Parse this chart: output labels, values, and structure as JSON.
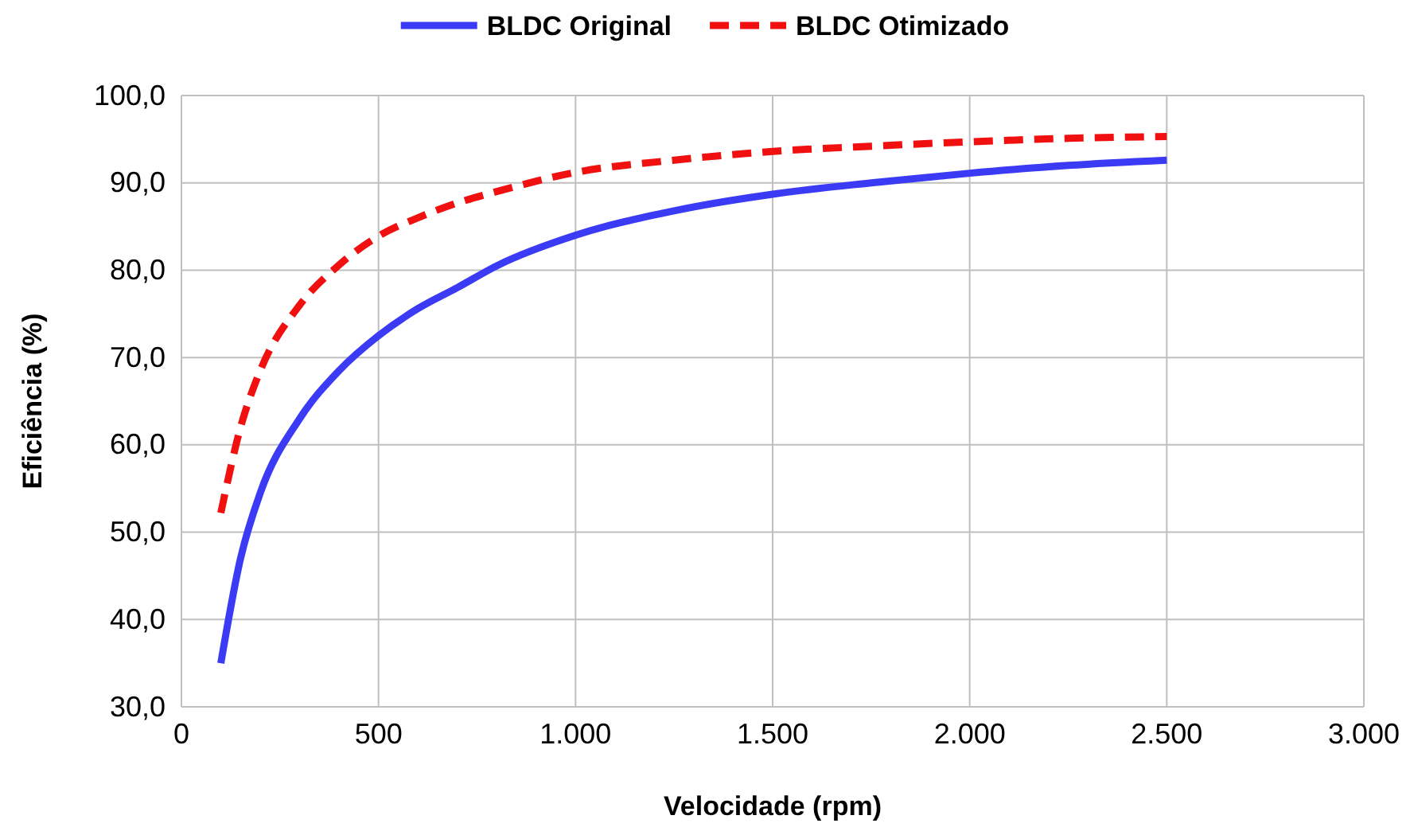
{
  "chart_data": {
    "type": "line",
    "xlabel": "Velocidade (rpm)",
    "ylabel": "Eficiência (%)",
    "xlim": [
      0,
      3000
    ],
    "ylim": [
      30,
      100
    ],
    "xticks": [
      0,
      {
        "value": 500,
        "label": "500"
      },
      {
        "value": 1000,
        "label": "1.000"
      },
      {
        "value": 1500,
        "label": "1.500"
      },
      {
        "value": 2000,
        "label": "2.000"
      },
      {
        "value": 2500,
        "label": "2.500"
      },
      {
        "value": 3000,
        "label": "3.000"
      }
    ],
    "yticks": [
      {
        "value": 30,
        "label": "30,0"
      },
      {
        "value": 40,
        "label": "40,0"
      },
      {
        "value": 50,
        "label": "50,0"
      },
      {
        "value": 60,
        "label": "60,0"
      },
      {
        "value": 70,
        "label": "70,0"
      },
      {
        "value": 80,
        "label": "80,0"
      },
      {
        "value": 90,
        "label": "90,0"
      },
      {
        "value": 100,
        "label": "100,0"
      }
    ],
    "grid": true,
    "legend": "top",
    "marker": "none",
    "x": [
      100,
      150,
      200,
      300,
      400,
      500,
      600,
      700,
      800,
      1000,
      1250,
      1500,
      1750,
      2000,
      2250,
      2500
    ],
    "series": [
      {
        "name": "BLDC Original",
        "color": "#3b3bf5",
        "line_style": "solid",
        "values": [
          35,
          47,
          54.5,
          63,
          68.5,
          72.5,
          75.6,
          78,
          80.5,
          84,
          86.8,
          88.7,
          90,
          91.1,
          92,
          92.6
        ]
      },
      {
        "name": "BLDC Otimizado",
        "color": "#f01010",
        "line_style": "dashed",
        "values": [
          52.2,
          62,
          68.5,
          76,
          80.6,
          83.9,
          86,
          87.7,
          89,
          91.2,
          92.6,
          93.6,
          94.2,
          94.7,
          95.1,
          95.3
        ]
      }
    ]
  }
}
